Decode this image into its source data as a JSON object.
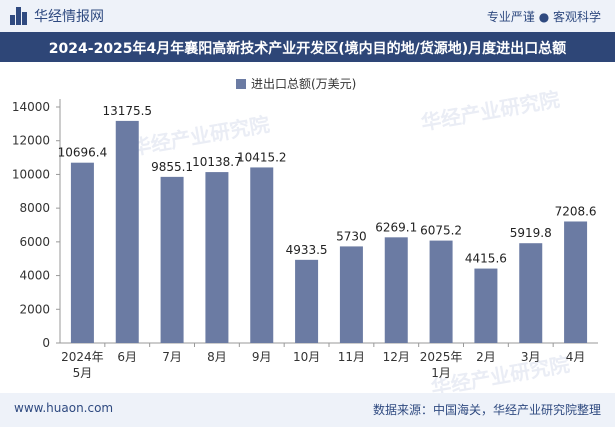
{
  "header": {
    "brand": "华经情报网",
    "tagline": "专业严谨 ● 客观科学"
  },
  "title": "2024-2025年4月年襄阳高新技术产业开发区(境内目的地/货源地)月度进出口总额",
  "footer": {
    "url": "www.huaon.com",
    "source": "数据来源：中国海关，华经产业研究院整理"
  },
  "watermark": "华经产业研究院",
  "colors": {
    "bar": "#6b7ba3",
    "title_bg": "#2e4677",
    "brand": "#2f4a80"
  },
  "chart_data": {
    "type": "bar",
    "categories": [
      "2024年\n5月",
      "6月",
      "7月",
      "8月",
      "9月",
      "10月",
      "11月",
      "12月",
      "2025年\n1月",
      "2月",
      "3月",
      "4月"
    ],
    "series": [
      {
        "name": "进出口总额(万美元)",
        "values": [
          10696.4,
          13175.5,
          9855.1,
          10138.7,
          10415.2,
          4933.5,
          5730,
          6269.1,
          6075.2,
          4415.6,
          5919.8,
          7208.6
        ],
        "labels": [
          "10696.4",
          "13175.5",
          "9855.1",
          "10138.7",
          "10415.2",
          "4933.5",
          "5730",
          "6269.1",
          "6075.2",
          "4415.6",
          "5919.8",
          "7208.6"
        ]
      }
    ],
    "yticks": [
      0,
      2000,
      4000,
      6000,
      8000,
      10000,
      12000,
      14000
    ],
    "ylim": [
      0,
      14000
    ],
    "grid": false,
    "legend": "top-center"
  }
}
